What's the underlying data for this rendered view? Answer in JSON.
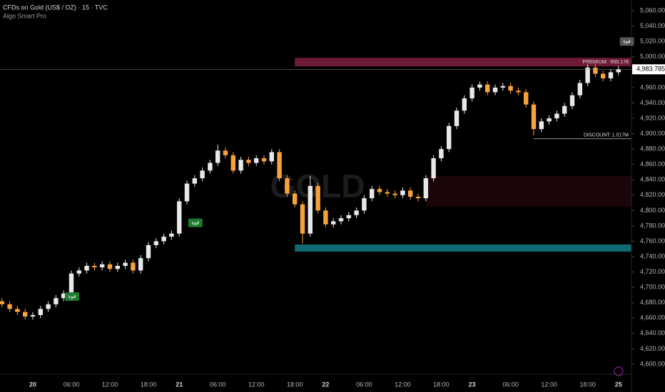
{
  "chart_data": {
    "type": "candlestick",
    "title": "CFDs on Gold (US$ / OZ) · 15 · TVC",
    "subtitle": "Algo Smart Pro",
    "watermark": "GOLD",
    "categories": [
      null,
      null,
      null,
      null,
      "20",
      null,
      null,
      null,
      null,
      "06:00",
      null,
      null,
      null,
      null,
      "12:00",
      null,
      null,
      null,
      null,
      "18:00",
      null,
      null,
      null,
      "21",
      null,
      null,
      null,
      null,
      "06:00",
      null,
      null,
      null,
      null,
      "12:00",
      null,
      null,
      null,
      null,
      "18:00",
      null,
      null,
      null,
      "22",
      null,
      null,
      null,
      null,
      "06:00",
      null,
      null,
      null,
      null,
      "12:00",
      null,
      null,
      null,
      null,
      "18:00",
      null,
      null,
      null,
      "23",
      null,
      null,
      null,
      null,
      "06:00",
      null,
      null,
      null,
      null,
      "12:00",
      null,
      null,
      null,
      null,
      "18:00",
      null,
      null,
      null,
      "25"
    ],
    "open": [
      4682,
      4678,
      4672,
      4668,
      4662,
      4664,
      4672,
      4678,
      4686,
      4692,
      4718,
      4722,
      4728,
      4726,
      4730,
      4724,
      4728,
      4732,
      4722,
      4738,
      4755,
      4760,
      4766,
      4770,
      4812,
      4835,
      4842,
      4852,
      4862,
      4878,
      4872,
      4852,
      4866,
      4862,
      4868,
      4864,
      4876,
      4842,
      4822,
      4808,
      4770,
      4832,
      4800,
      4782,
      4786,
      4790,
      4794,
      4800,
      4816,
      4828,
      4824,
      4822,
      4820,
      4826,
      4818,
      4816,
      4842,
      4868,
      4880,
      4910,
      4930,
      4946,
      4960,
      4964,
      4954,
      4960,
      4962,
      4956,
      4954,
      4938,
      4906,
      4916,
      4920,
      4926,
      4936,
      4950,
      4966,
      4986,
      4978,
      4972,
      4980
    ],
    "high": [
      4686,
      4682,
      4676,
      4672,
      4668,
      4676,
      4682,
      4690,
      4696,
      4722,
      4726,
      4732,
      4732,
      4734,
      4734,
      4732,
      4736,
      4736,
      4742,
      4759,
      4764,
      4770,
      4774,
      4816,
      4839,
      4846,
      4856,
      4866,
      4886,
      4882,
      4876,
      4870,
      4870,
      4872,
      4872,
      4880,
      4880,
      4846,
      4826,
      4812,
      4845,
      4836,
      4804,
      4790,
      4794,
      4798,
      4804,
      4820,
      4832,
      4832,
      4828,
      4826,
      4830,
      4830,
      4822,
      4846,
      4872,
      4884,
      4914,
      4934,
      4950,
      4964,
      4968,
      4968,
      4964,
      4966,
      4966,
      4960,
      4958,
      4942,
      4920,
      4924,
      4930,
      4940,
      4954,
      4970,
      4990,
      4990,
      4982,
      4984,
      4988
    ],
    "low": [
      4674,
      4668,
      4664,
      4658,
      4658,
      4660,
      4668,
      4674,
      4682,
      4688,
      4714,
      4718,
      4722,
      4722,
      4720,
      4720,
      4724,
      4718,
      4718,
      4734,
      4751,
      4756,
      4762,
      4766,
      4808,
      4831,
      4838,
      4848,
      4858,
      4868,
      4848,
      4848,
      4858,
      4858,
      4860,
      4860,
      4838,
      4818,
      4804,
      4757,
      4766,
      4796,
      4778,
      4778,
      4782,
      4786,
      4790,
      4796,
      4812,
      4820,
      4818,
      4816,
      4816,
      4814,
      4812,
      4812,
      4838,
      4864,
      4876,
      4906,
      4926,
      4942,
      4956,
      4950,
      4950,
      4956,
      4952,
      4950,
      4934,
      4898,
      4902,
      4912,
      4916,
      4922,
      4932,
      4946,
      4962,
      4974,
      4968,
      4968,
      4976
    ],
    "close": [
      4678,
      4672,
      4668,
      4662,
      4664,
      4672,
      4678,
      4686,
      4692,
      4718,
      4722,
      4728,
      4726,
      4730,
      4724,
      4728,
      4732,
      4722,
      4738,
      4755,
      4760,
      4766,
      4770,
      4812,
      4835,
      4842,
      4852,
      4862,
      4878,
      4872,
      4852,
      4866,
      4862,
      4868,
      4864,
      4876,
      4842,
      4822,
      4808,
      4770,
      4832,
      4800,
      4782,
      4786,
      4790,
      4794,
      4800,
      4816,
      4828,
      4824,
      4822,
      4820,
      4826,
      4818,
      4816,
      4842,
      4868,
      4880,
      4910,
      4930,
      4946,
      4960,
      4964,
      4954,
      4960,
      4962,
      4956,
      4954,
      4938,
      4906,
      4916,
      4920,
      4926,
      4936,
      4950,
      4966,
      4986,
      4978,
      4972,
      4980,
      4983.785
    ],
    "up_color": "#e8e8e8",
    "down_color": "#f7a23a",
    "ylim": [
      4587,
      5074
    ],
    "yticks": [
      {
        "value": 4600,
        "label": "4,600.000"
      },
      {
        "value": 4620,
        "label": "4,620.000"
      },
      {
        "value": 4640,
        "label": "4,640.000"
      },
      {
        "value": 4660,
        "label": "4,660.000"
      },
      {
        "value": 4680,
        "label": "4,680.000"
      },
      {
        "value": 4700,
        "label": "4,700.000"
      },
      {
        "value": 4720,
        "label": "4,720.000"
      },
      {
        "value": 4740,
        "label": "4,740.000"
      },
      {
        "value": 4760,
        "label": "4,760.000"
      },
      {
        "value": 4780,
        "label": "4,780.000"
      },
      {
        "value": 4800,
        "label": "4,800.000"
      },
      {
        "value": 4820,
        "label": "4,820.000"
      },
      {
        "value": 4840,
        "label": "4,840.000"
      },
      {
        "value": 4860,
        "label": "4,860.000"
      },
      {
        "value": 4880,
        "label": "4,880.000"
      },
      {
        "value": 4900,
        "label": "4,900.000"
      },
      {
        "value": 4920,
        "label": "4,920.000"
      },
      {
        "value": 4940,
        "label": "4,940.000"
      },
      {
        "value": 4960,
        "label": "4,960.000"
      },
      {
        "value": 4980,
        "label": "4,980.000"
      },
      {
        "value": 5000,
        "label": "5,000.000"
      },
      {
        "value": 5020,
        "label": "5,020.000"
      },
      {
        "value": 5040,
        "label": "5,040.000"
      },
      {
        "value": 5060,
        "label": "5,060.000"
      }
    ],
    "last_price": 4983.785,
    "last_price_label": "4,983.785",
    "zones": [
      {
        "label": "PREMIUM: -565.178",
        "from_index": 38,
        "top": 4998.7,
        "bottom": 4987.6,
        "color": "#6e1a35"
      },
      {
        "from_index": 55,
        "top": 4845,
        "bottom": 4805,
        "color": "#1a0608"
      },
      {
        "from_index": 38,
        "top": 4755.8,
        "bottom": 4746.5,
        "color": "#0f6b73"
      },
      {
        "label": "DISCOUNT: 1.017M",
        "from_index": 69,
        "top": 4894,
        "bottom": 4893,
        "color": "#888888"
      }
    ],
    "annotations": [
      {
        "text": "قوة",
        "index": 9,
        "value": 4688,
        "color": "#1e7a2e"
      },
      {
        "text": "قوة",
        "index": 25,
        "value": 4784,
        "color": "#1e7a2e"
      },
      {
        "text": "قوة",
        "index": 81,
        "value": 5020,
        "color": "#555555"
      }
    ]
  }
}
